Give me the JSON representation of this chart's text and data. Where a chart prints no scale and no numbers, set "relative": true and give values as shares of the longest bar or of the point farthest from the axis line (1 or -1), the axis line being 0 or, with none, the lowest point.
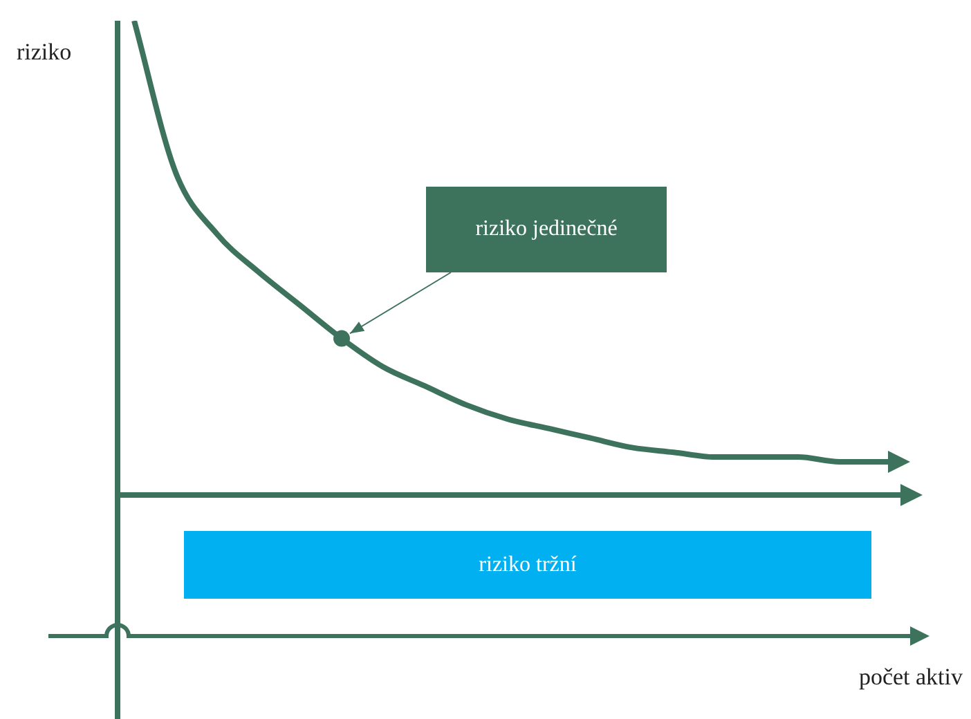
{
  "chart_data": {
    "type": "line",
    "relative": true,
    "ylabel": "riziko",
    "marker": "none",
    "categories": [
      null,
      null,
      null,
      null,
      null,
      null,
      null,
      null,
      null,
      null,
      null,
      null,
      null,
      null,
      null,
      null,
      null,
      null,
      null
    ],
    "series": [
      {
        "color": "#3d735c",
        "values": [
          1,
          0.68,
          0.55,
          0.47,
          0.4,
          0.33,
          0.27,
          0.23,
          0.19,
          0.16,
          0.14,
          0.12,
          0.1,
          0.09,
          0.08,
          0.08,
          0.08,
          0.07,
          0.07
        ]
      }
    ],
    "annotations": [
      "riziko jedinečné",
      "riziko tržní",
      "počet aktiv"
    ]
  }
}
